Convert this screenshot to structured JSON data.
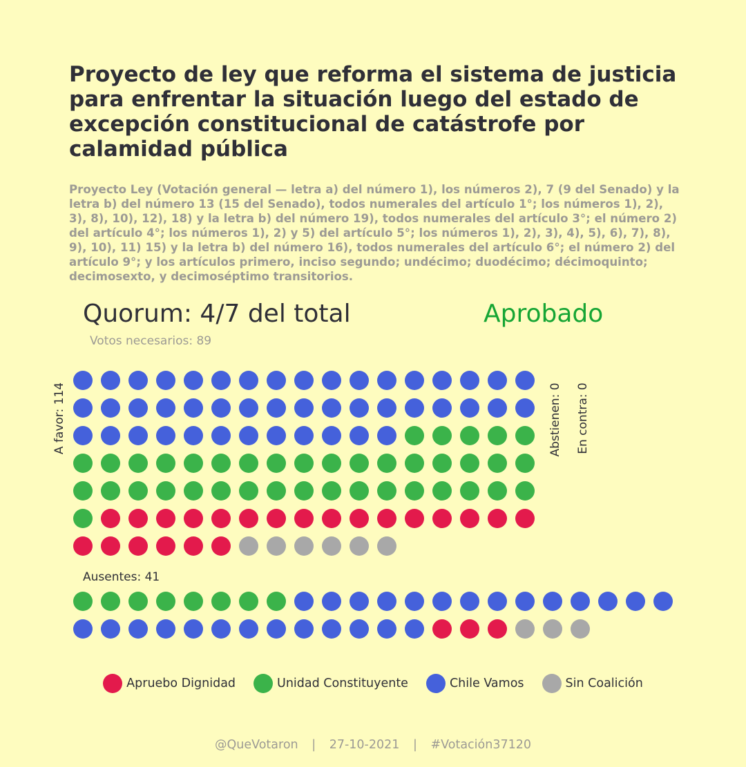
{
  "header": {
    "title": "Proyecto de ley que reforma el sistema de justicia para enfrentar la situación luego del estado de excepción constitucional de catástrofe por calamidad pública",
    "subtitle": "Proyecto Ley (Votación general — letra a) del número 1), los números 2), 7 (9 del Senado) y la letra b) del número 13 (15 del Senado), todos numerales del artículo 1°; los números 1), 2), 3), 8), 10), 12), 18) y la letra b) del número 19), todos numerales del artículo 3°; el número 2) del artículo 4°; los números 1), 2) y 5) del artículo 5°; los números 1), 2), 3), 4), 5), 6), 7), 8), 9), 10), 11) 15) y la letra b) del número 16), todos numerales del artículo 6°; el número 2) del artículo 9°; y los artículos primero, inciso segundo; undécimo; duodécimo; décimoquinto; decimosexto, y decimoséptimo transitorios."
  },
  "quorum": {
    "label": "Quorum: 4/7 del total",
    "needed": "Votos necesarios: 89",
    "result": "Aprobado",
    "result_color": "#16a534"
  },
  "labels": {
    "favor": "A favor: 114",
    "abstain": "Abstienen: 0",
    "contra": "En contra: 0",
    "absent": "Ausentes: 41"
  },
  "chart_data": {
    "type": "waffle",
    "coalitions": [
      {
        "key": "AD",
        "name": "Apruebo Dignidad",
        "color": "#e31a4c"
      },
      {
        "key": "UC",
        "name": "Unidad Constituyente",
        "color": "#3bb34a"
      },
      {
        "key": "CV",
        "name": "Chile Vamos",
        "color": "#4561db"
      },
      {
        "key": "SC",
        "name": "Sin Coalición",
        "color": "#a8a8a8"
      }
    ],
    "groups": [
      {
        "name": "A favor",
        "total": 114,
        "per_row": 17,
        "counts": {
          "CV": 46,
          "UC": 40,
          "AD": 22,
          "SC": 6
        }
      },
      {
        "name": "Abstienen",
        "total": 0,
        "counts": {}
      },
      {
        "name": "En contra",
        "total": 0,
        "counts": {}
      },
      {
        "name": "Ausentes",
        "total": 41,
        "per_row": 22,
        "counts": {
          "UC": 8,
          "CV": 27,
          "AD": 3,
          "SC": 3
        }
      }
    ]
  },
  "legend": [
    {
      "label": "Apruebo Dignidad",
      "color": "#e31a4c"
    },
    {
      "label": "Unidad Constituyente",
      "color": "#3bb34a"
    },
    {
      "label": "Chile Vamos",
      "color": "#4561db"
    },
    {
      "label": "Sin Coalición",
      "color": "#a8a8a8"
    }
  ],
  "footer": {
    "handle": "@QueVotaron",
    "date": "27-10-2021",
    "tag": "#Votación37120",
    "separator": "|"
  }
}
